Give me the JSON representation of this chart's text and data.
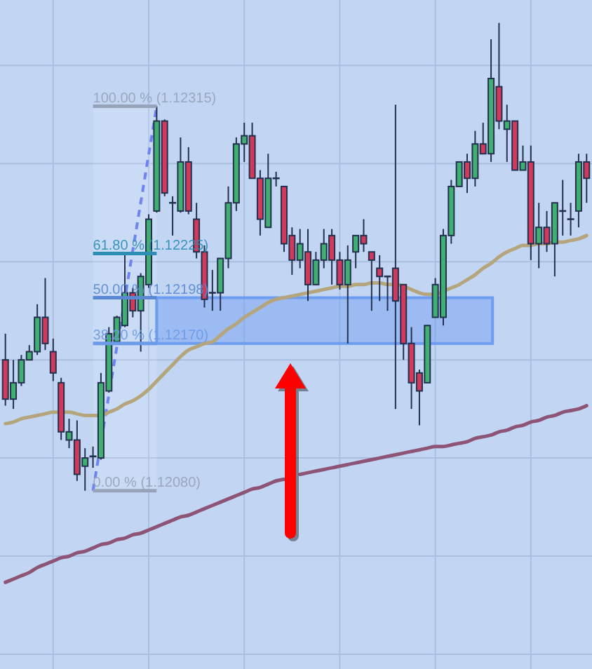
{
  "chart_data": {
    "type": "candlestick",
    "categories": [
      null,
      null,
      null,
      null,
      null,
      null,
      null,
      null,
      null,
      null,
      null,
      null,
      null,
      null,
      null,
      null,
      null,
      null,
      null,
      null,
      null,
      null,
      null,
      null,
      null,
      null,
      null,
      null,
      null,
      null,
      null,
      null,
      null,
      null,
      null,
      null,
      null,
      null,
      null,
      null,
      null,
      null,
      null,
      null,
      null,
      null,
      null,
      null,
      null,
      null,
      null,
      null,
      null,
      null,
      null,
      null,
      null,
      null,
      null,
      null,
      null,
      null,
      null,
      null,
      null,
      null,
      null,
      null,
      null,
      null,
      null,
      null,
      null,
      null
    ],
    "ohlc": [
      [
        1.1216,
        1.12176,
        1.12132,
        1.12136
      ],
      [
        1.12136,
        1.1216,
        1.1213,
        1.12146
      ],
      [
        1.12146,
        1.12163,
        1.12144,
        1.1216
      ],
      [
        1.1216,
        1.12169,
        1.1216,
        1.12165
      ],
      [
        1.12165,
        1.12194,
        1.12163,
        1.12186
      ],
      [
        1.12186,
        1.1221,
        1.12166,
        1.1217
      ],
      [
        1.12165,
        1.12173,
        1.12147,
        1.12152
      ],
      [
        1.12146,
        1.12149,
        1.12111,
        1.12116
      ],
      [
        1.12111,
        1.12124,
        1.12106,
        1.12116
      ],
      [
        1.12111,
        1.12123,
        1.12086,
        1.1209
      ],
      [
        1.12095,
        1.12106,
        1.1208,
        1.121
      ],
      [
        1.12101,
        1.12107,
        1.12094,
        1.12101
      ],
      [
        1.121,
        1.12152,
        1.12099,
        1.12146
      ],
      [
        1.12141,
        1.1218,
        1.1214,
        1.12176
      ],
      [
        1.12171,
        1.12187,
        1.1217,
        1.12186
      ],
      [
        1.12181,
        1.12224,
        1.1218,
        1.12201
      ],
      [
        1.12201,
        1.12204,
        1.12186,
        1.1219
      ],
      [
        1.1219,
        1.12213,
        1.12165,
        1.12211
      ],
      [
        1.12206,
        1.12249,
        1.12204,
        1.12246
      ],
      [
        1.12251,
        1.12315,
        1.1225,
        1.12306
      ],
      [
        1.12306,
        1.12307,
        1.1226,
        1.12262
      ],
      [
        1.12256,
        1.1226,
        1.12236,
        1.12256
      ],
      [
        1.12251,
        1.12296,
        1.1225,
        1.12281
      ],
      [
        1.12281,
        1.1229,
        1.12249,
        1.12251
      ],
      [
        1.12246,
        1.12256,
        1.12222,
        1.12226
      ],
      [
        1.12226,
        1.1223,
        1.12192,
        1.12197
      ],
      [
        1.12201,
        1.12215,
        1.1219,
        1.12201
      ],
      [
        1.12201,
        1.12222,
        1.1219,
        1.12222
      ],
      [
        1.12222,
        1.12266,
        1.12216,
        1.12256
      ],
      [
        1.12256,
        1.12296,
        1.12251,
        1.12292
      ],
      [
        1.12292,
        1.12305,
        1.12281,
        1.12297
      ],
      [
        1.12297,
        1.12305,
        1.12271,
        1.12271
      ],
      [
        1.12271,
        1.12276,
        1.12236,
        1.12246
      ],
      [
        1.12241,
        1.12286,
        1.12241,
        1.12271
      ],
      [
        1.12271,
        1.12275,
        1.12266,
        1.12271
      ],
      [
        1.12266,
        1.12266,
        1.12226,
        1.12231
      ],
      [
        1.12236,
        1.12241,
        1.12212,
        1.12221
      ],
      [
        1.12221,
        1.1224,
        1.12216,
        1.12231
      ],
      [
        1.12226,
        1.1224,
        1.12196,
        1.12206
      ],
      [
        1.12206,
        1.12226,
        1.12206,
        1.12221
      ],
      [
        1.12221,
        1.1224,
        1.12216,
        1.12231
      ],
      [
        1.12236,
        1.1224,
        1.12206,
        1.12221
      ],
      [
        1.12221,
        1.12226,
        1.12203,
        1.12206
      ],
      [
        1.12206,
        1.1223,
        1.1217,
        1.12221
      ],
      [
        1.12226,
        1.12236,
        1.12216,
        1.12236
      ],
      [
        1.12236,
        1.12246,
        1.12226,
        1.12231
      ],
      [
        1.12226,
        1.12226,
        1.1219,
        1.12221
      ],
      [
        1.12216,
        1.12224,
        1.12196,
        1.12211
      ],
      [
        1.12211,
        1.12211,
        1.1219,
        1.12211
      ],
      [
        1.12216,
        1.12316,
        1.1213,
        1.12196
      ],
      [
        1.12206,
        1.12206,
        1.1216,
        1.1217
      ],
      [
        1.1217,
        1.1218,
        1.1213,
        1.12146
      ],
      [
        1.12152,
        1.12154,
        1.1212,
        1.12141
      ],
      [
        1.12146,
        1.12181,
        1.12146,
        1.12181
      ],
      [
        1.12186,
        1.1221,
        1.12186,
        1.12206
      ],
      [
        1.12186,
        1.1224,
        1.12181,
        1.12236
      ],
      [
        1.12236,
        1.1227,
        1.12231,
        1.12266
      ],
      [
        1.12266,
        1.12281,
        1.12266,
        1.12281
      ],
      [
        1.12281,
        1.12286,
        1.12262,
        1.12271
      ],
      [
        1.12271,
        1.123,
        1.12266,
        1.12292
      ],
      [
        1.12292,
        1.12305,
        1.12286,
        1.12286
      ],
      [
        1.12286,
        1.12356,
        1.12281,
        1.12332
      ],
      [
        1.12327,
        1.12366,
        1.12301,
        1.12306
      ],
      [
        1.12301,
        1.12316,
        1.12281,
        1.12306
      ],
      [
        1.12306,
        1.12306,
        1.12276,
        1.12276
      ],
      [
        1.12276,
        1.12291,
        1.12276,
        1.12281
      ],
      [
        1.12281,
        1.12291,
        1.12221,
        1.12231
      ],
      [
        1.12231,
        1.12256,
        1.12216,
        1.12241
      ],
      [
        1.12241,
        1.12251,
        1.12226,
        1.12231
      ],
      [
        1.12231,
        1.12256,
        1.12211,
        1.12256
      ],
      [
        1.12251,
        1.1227,
        1.12236,
        1.12251
      ],
      [
        1.12246,
        1.12256,
        1.12236,
        1.12246
      ],
      [
        1.12251,
        1.12286,
        1.12241,
        1.12281
      ],
      [
        1.12281,
        1.12286,
        1.12256,
        1.12271
      ]
    ],
    "colors": [
      "#d13a5b",
      "#3fb06f",
      "#3fb06f",
      "#3fb06f",
      "#3fb06f",
      "#d13a5b",
      "#d13a5b",
      "#d13a5b",
      "#3fb06f",
      "#d13a5b",
      "#3fb06f",
      "#23314f",
      "#3fb06f",
      "#3fb06f",
      "#3fb06f",
      "#3fb06f",
      "#d13a5b",
      "#3fb06f",
      "#3fb06f",
      "#3fb06f",
      "#d13a5b",
      "#23314f",
      "#3fb06f",
      "#d13a5b",
      "#d13a5b",
      "#d13a5b",
      "#23314f",
      "#3fb06f",
      "#3fb06f",
      "#3fb06f",
      "#3fb06f",
      "#d13a5b",
      "#d13a5b",
      "#3fb06f",
      "#23314f",
      "#d13a5b",
      "#d13a5b",
      "#3fb06f",
      "#d13a5b",
      "#3fb06f",
      "#3fb06f",
      "#d13a5b",
      "#d13a5b",
      "#3fb06f",
      "#3fb06f",
      "#d13a5b",
      "#d13a5b",
      "#d13a5b",
      "#23314f",
      "#d13a5b",
      "#d13a5b",
      "#d13a5b",
      "#d13a5b",
      "#3fb06f",
      "#3fb06f",
      "#3fb06f",
      "#3fb06f",
      "#3fb06f",
      "#d13a5b",
      "#3fb06f",
      "#d13a5b",
      "#3fb06f",
      "#d13a5b",
      "#3fb06f",
      "#d13a5b",
      "#3fb06f",
      "#d13a5b",
      "#3fb06f",
      "#d13a5b",
      "#3fb06f",
      "#23314f",
      "#23314f",
      "#3fb06f",
      "#d13a5b"
    ],
    "series": [
      {
        "type": "line",
        "color": "#b4a57d",
        "values": [
          1.12121,
          1.12122,
          1.12124,
          1.12125,
          1.12126,
          1.12127,
          1.12128,
          1.12128,
          1.12128,
          1.12127,
          1.12126,
          1.12126,
          1.12126,
          1.12128,
          1.1213,
          1.12133,
          1.12135,
          1.12138,
          1.12142,
          1.12147,
          1.12152,
          1.12157,
          1.12162,
          1.12166,
          1.12168,
          1.1217,
          1.12171,
          1.12175,
          1.12179,
          1.12182,
          1.12186,
          1.12189,
          1.12192,
          1.12195,
          1.12197,
          1.12198,
          1.12199,
          1.122,
          1.12201,
          1.12202,
          1.12203,
          1.12204,
          1.12205,
          1.12205,
          1.12206,
          1.12206,
          1.12207,
          1.12207,
          1.12206,
          1.12206,
          1.12205,
          1.12203,
          1.12201,
          1.122,
          1.122,
          1.12202,
          1.12204,
          1.12206,
          1.12209,
          1.12212,
          1.12216,
          1.12219,
          1.12223,
          1.12226,
          1.12228,
          1.1223,
          1.1223,
          1.12231,
          1.12231,
          1.12232,
          1.12232,
          1.12233,
          1.12234,
          1.12236
        ]
      },
      {
        "type": "line",
        "color": "#8d5476",
        "values": [
          1.12024,
          1.12026,
          1.12028,
          1.1203,
          1.12033,
          1.12035,
          1.12037,
          1.12039,
          1.1204,
          1.12042,
          1.12043,
          1.12045,
          1.12047,
          1.12048,
          1.1205,
          1.12051,
          1.12053,
          1.12054,
          1.12056,
          1.12058,
          1.1206,
          1.12062,
          1.12064,
          1.12065,
          1.12067,
          1.12069,
          1.12071,
          1.12073,
          1.12075,
          1.12077,
          1.12079,
          1.12081,
          1.12082,
          1.12084,
          1.12086,
          1.12087,
          null,
          1.1209,
          1.12091,
          1.12092,
          1.12093,
          1.12094,
          1.12095,
          1.12096,
          1.12097,
          1.12098,
          1.12099,
          1.121,
          1.12101,
          1.12102,
          1.12103,
          1.12104,
          1.12105,
          1.12106,
          1.12107,
          1.12107,
          1.12108,
          1.12109,
          1.1211,
          1.12112,
          1.12113,
          1.12114,
          1.12116,
          1.12117,
          1.12119,
          1.1212,
          1.12122,
          1.12123,
          1.12125,
          1.12126,
          1.12128,
          1.12129,
          1.1213,
          1.12132
        ]
      }
    ],
    "ylim": [
      1.11971,
      1.1238
    ],
    "yticks": [
      {
        "value": 1.1198,
        "label": null
      },
      {
        "value": 1.1204,
        "label": null
      },
      {
        "value": 1.121,
        "label": null
      },
      {
        "value": 1.1216,
        "label": null
      },
      {
        "value": 1.1222,
        "label": null
      },
      {
        "value": 1.1228,
        "label": null
      },
      {
        "value": 1.1234,
        "label": null
      }
    ],
    "grid": true,
    "ref_lines": [
      {
        "axis": "y",
        "value": 1.12315,
        "label": "100.00 % (1.12315)",
        "color": "#97a3b9"
      },
      {
        "axis": "y",
        "value": 1.12225,
        "label": "61.80 % (1.12225)",
        "color": "#2d8db5"
      },
      {
        "axis": "y",
        "value": 1.12198,
        "label": "50.00 % (1.12198)",
        "color": "#5a88d2"
      },
      {
        "axis": "y",
        "value": 1.1217,
        "label": "38.20 % (1.12170)",
        "color": "#6a9ae8"
      },
      {
        "axis": "y",
        "value": 1.1208,
        "label": "0.00 % (1.12080)",
        "color": "#97a3b9"
      }
    ],
    "bands": [
      {
        "axis": "y",
        "from": 1.1217,
        "to": 1.12198,
        "color": "#6d9cf0"
      }
    ]
  }
}
